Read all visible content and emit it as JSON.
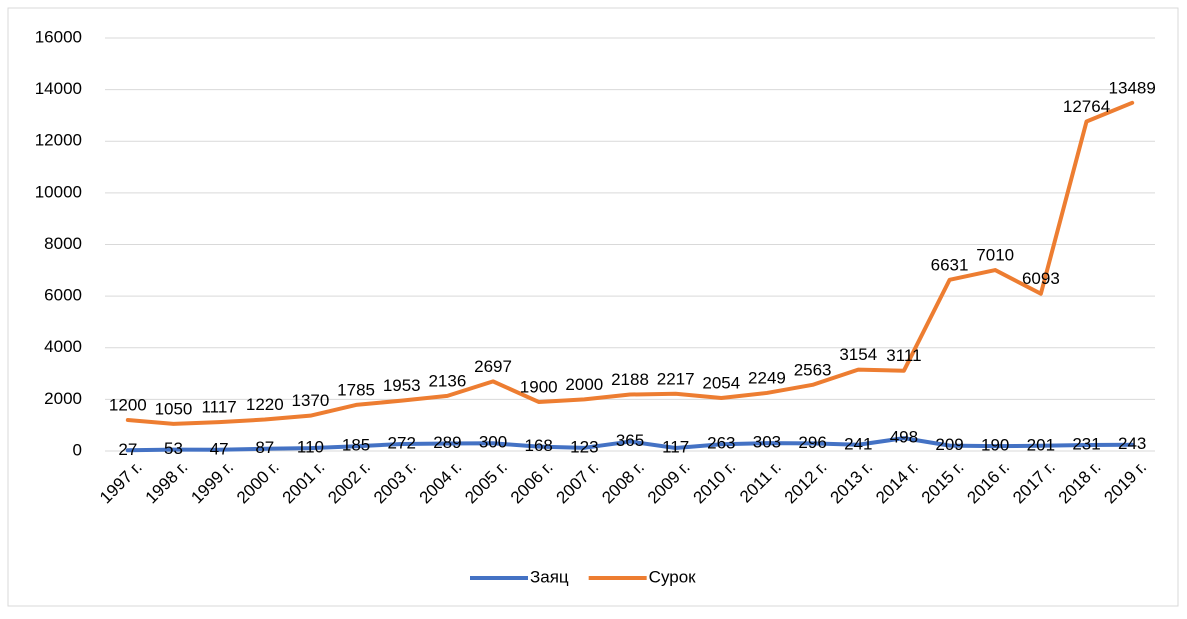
{
  "chart_data": {
    "type": "line",
    "categories": [
      "1997 г.",
      "1998 г.",
      "1999 г.",
      "2000 г.",
      "2001 г.",
      "2002 г.",
      "2003 г.",
      "2004 г.",
      "2005 г.",
      "2006 г.",
      "2007 г.",
      "2008 г.",
      "2009 г.",
      "2010 г.",
      "2011 г.",
      "2012 г.",
      "2013 г.",
      "2014 г.",
      "2015 г.",
      "2016 г.",
      "2017 г.",
      "2018 г.",
      "2019 г."
    ],
    "series": [
      {
        "name": "Заяц",
        "color": "#4472c4",
        "values": [
          27,
          53,
          47,
          87,
          110,
          185,
          272,
          289,
          300,
          168,
          123,
          365,
          117,
          263,
          303,
          296,
          241,
          498,
          209,
          190,
          201,
          231,
          243
        ]
      },
      {
        "name": "Сурок",
        "color": "#ed7d31",
        "values": [
          1200,
          1050,
          1117,
          1220,
          1370,
          1785,
          1953,
          2136,
          2697,
          1900,
          2000,
          2188,
          2217,
          2054,
          2249,
          2563,
          3154,
          3111,
          6631,
          7010,
          6093,
          12764,
          13489
        ]
      }
    ],
    "ylim": [
      0,
      16000
    ],
    "yticks": [
      0,
      2000,
      4000,
      6000,
      8000,
      10000,
      12000,
      14000,
      16000
    ],
    "grid": true,
    "legend": "bottom"
  }
}
